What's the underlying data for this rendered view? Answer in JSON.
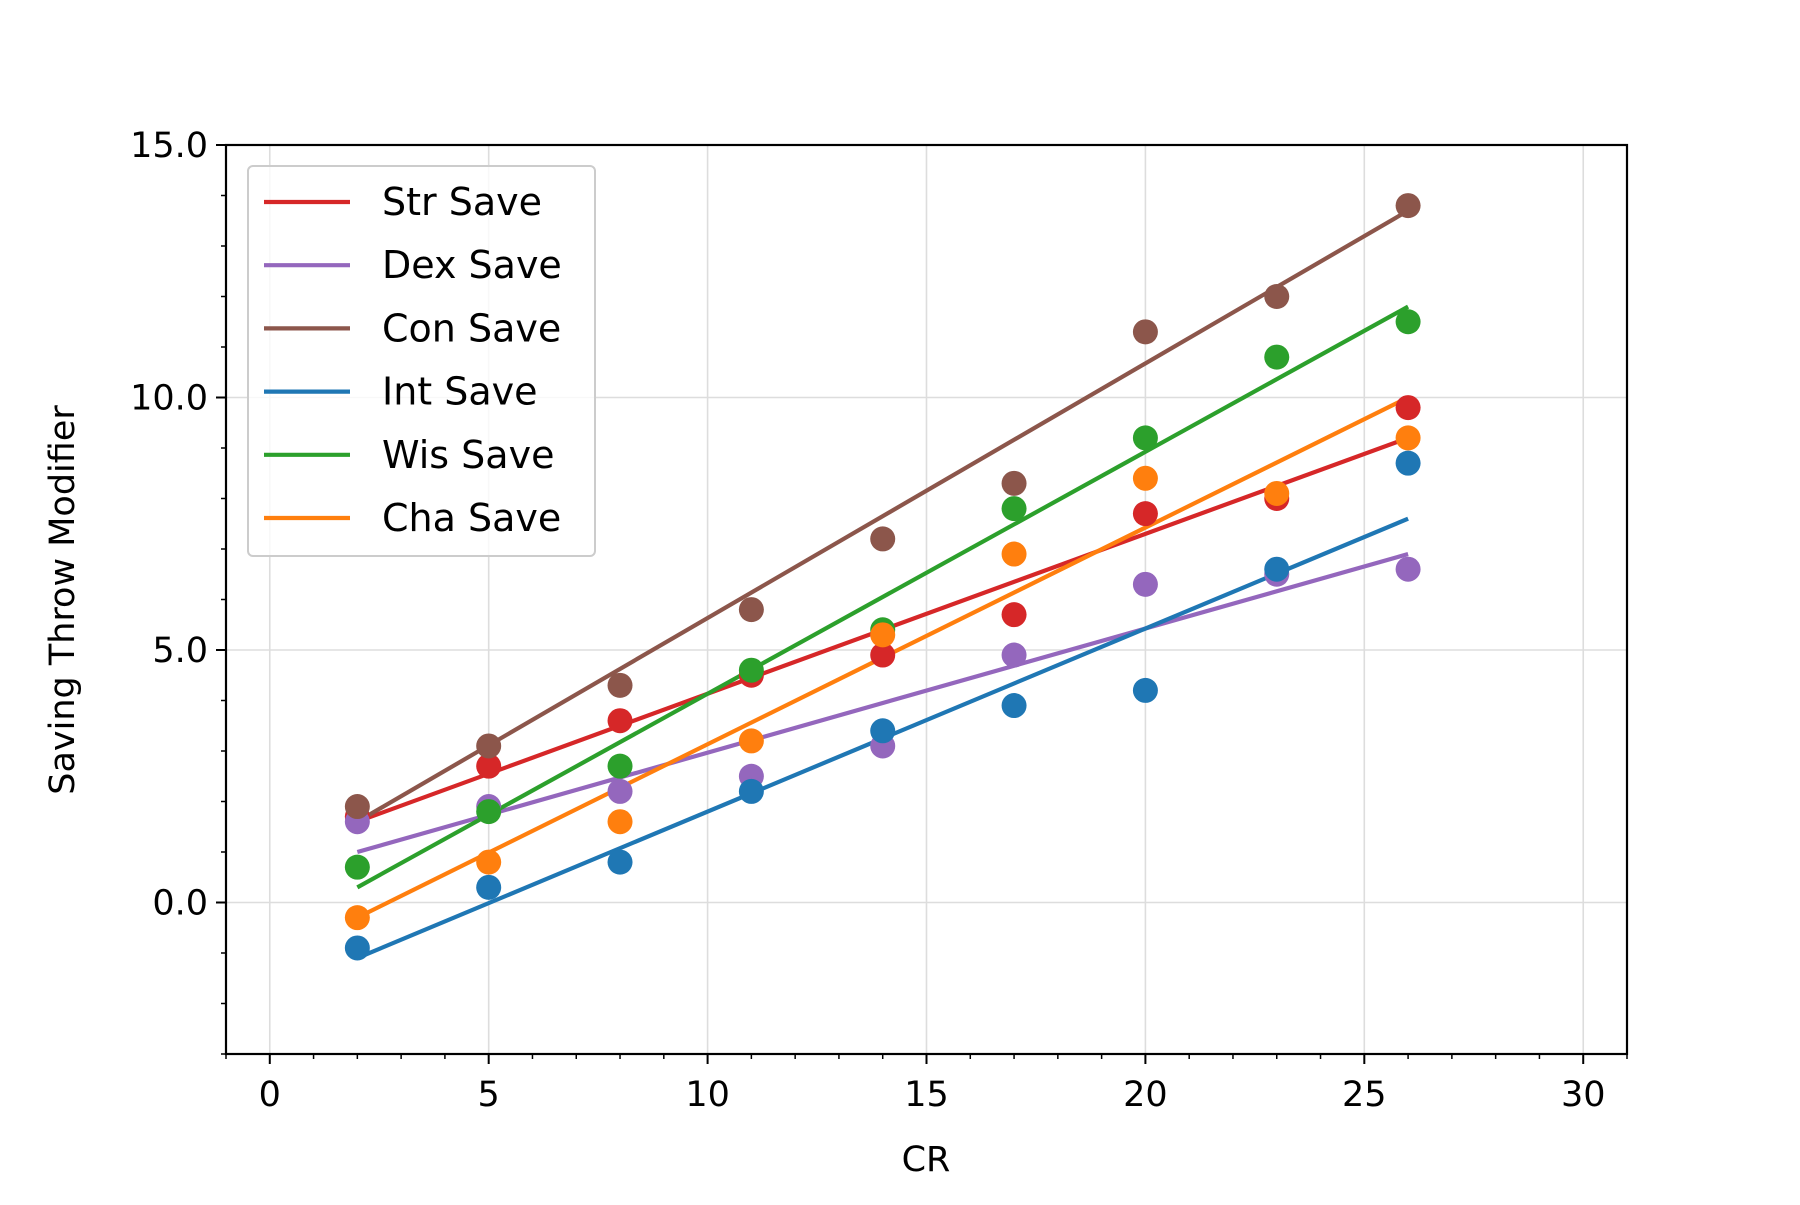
{
  "chart_data": {
    "type": "scatter",
    "title": "",
    "xlabel": "CR",
    "ylabel": "Saving Throw Modifier",
    "xlim": [
      -1,
      31
    ],
    "ylim": [
      -3,
      15
    ],
    "x_ticks": [
      0,
      5,
      10,
      15,
      20,
      25,
      30
    ],
    "x_tick_labels": [
      "0",
      "5",
      "10",
      "15",
      "20",
      "25",
      "30"
    ],
    "y_ticks": [
      0,
      5,
      10,
      15
    ],
    "y_tick_labels": [
      "0.0",
      "5.0",
      "10.0",
      "15.0"
    ],
    "grid": true,
    "legend_position": "top-left",
    "x": [
      2,
      5,
      8,
      11,
      14,
      17,
      20,
      23,
      26
    ],
    "series": [
      {
        "name": "Str Save",
        "color": "#d62728",
        "points": [
          1.7,
          2.7,
          3.6,
          4.5,
          4.9,
          5.7,
          7.7,
          8.0,
          9.8
        ],
        "fit": [
          1.6,
          9.2
        ]
      },
      {
        "name": "Dex Save",
        "color": "#9467bd",
        "points": [
          1.6,
          1.9,
          2.2,
          2.5,
          3.1,
          4.9,
          6.3,
          6.5,
          6.6
        ],
        "fit": [
          1.0,
          6.9
        ]
      },
      {
        "name": "Con Save",
        "color": "#8c564b",
        "points": [
          1.9,
          3.1,
          4.3,
          5.8,
          7.2,
          8.3,
          11.3,
          12.0,
          13.8
        ],
        "fit": [
          1.6,
          13.7
        ]
      },
      {
        "name": "Int Save",
        "color": "#1f77b4",
        "points": [
          -0.9,
          0.3,
          0.8,
          2.2,
          3.4,
          3.9,
          4.2,
          6.6,
          8.7
        ],
        "fit": [
          -1.1,
          7.6
        ]
      },
      {
        "name": "Wis Save",
        "color": "#2ca02c",
        "points": [
          0.7,
          1.8,
          2.7,
          4.6,
          5.4,
          7.8,
          9.2,
          10.8,
          11.5
        ],
        "fit": [
          0.3,
          11.8
        ]
      },
      {
        "name": "Cha Save",
        "color": "#ff7f0e",
        "points": [
          -0.3,
          0.8,
          1.6,
          3.2,
          5.3,
          6.9,
          8.4,
          8.1,
          9.2
        ],
        "fit": [
          -0.3,
          10.0
        ]
      }
    ]
  }
}
